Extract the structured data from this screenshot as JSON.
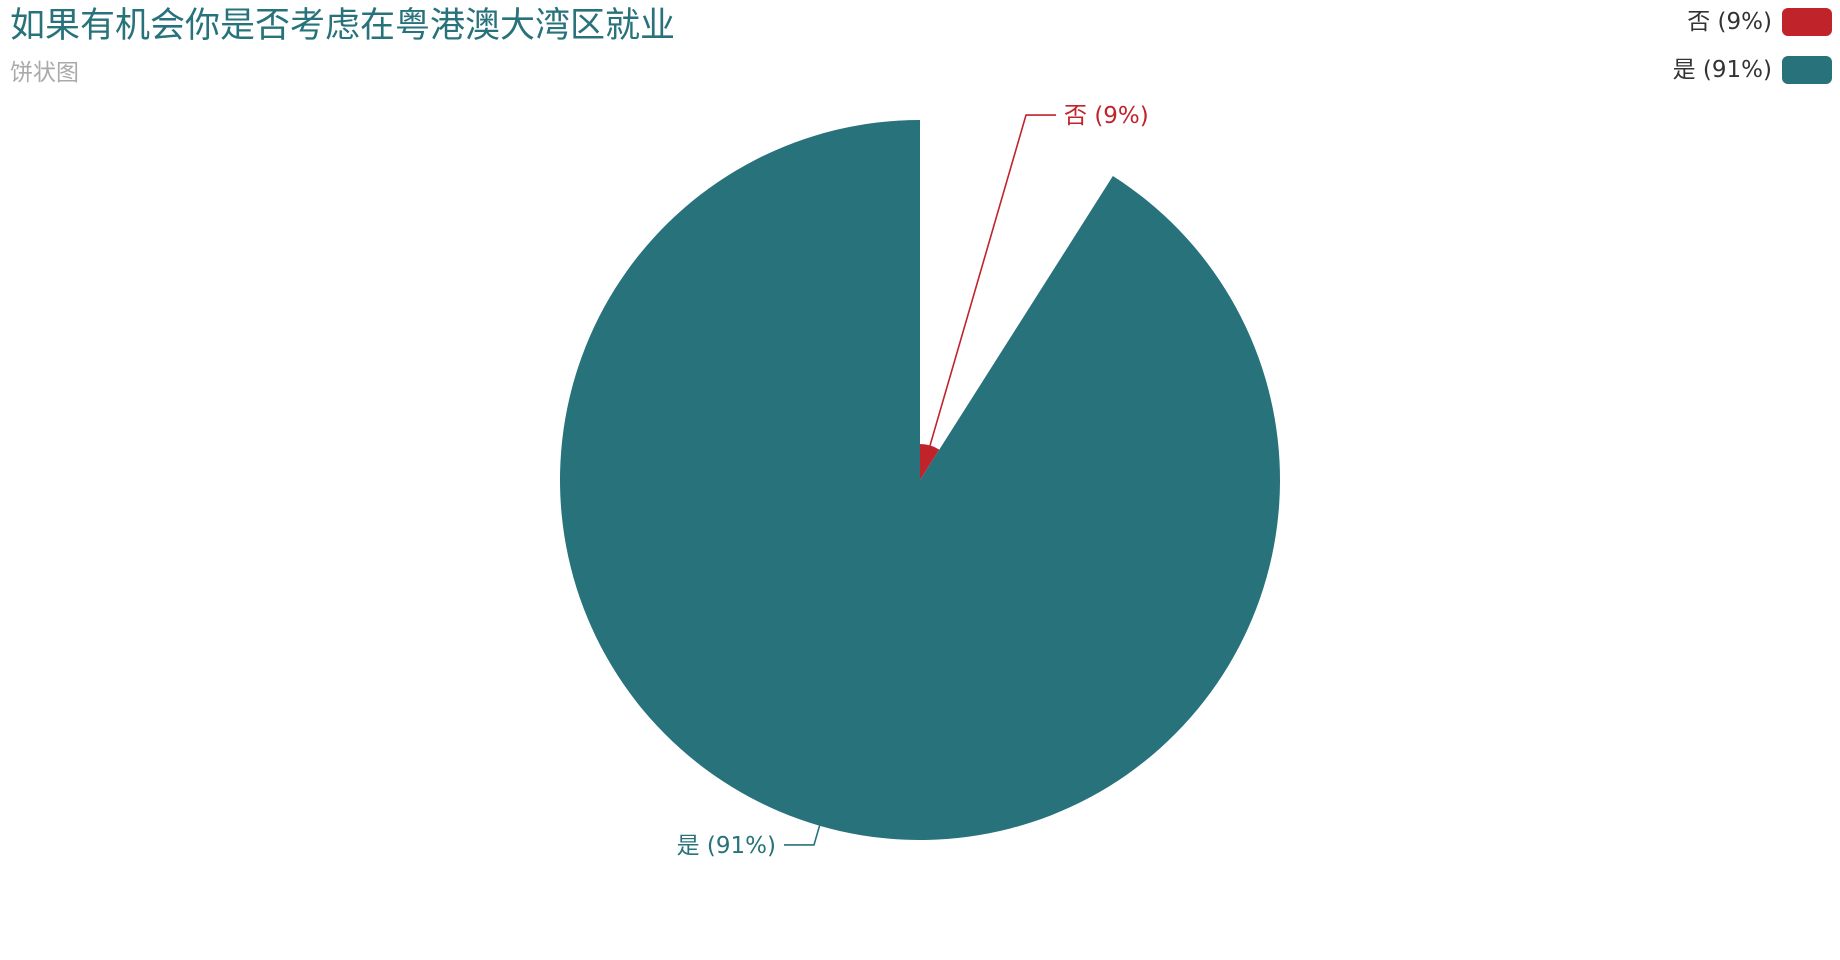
{
  "chart_data": {
    "type": "pie",
    "title": "如果有机会你是否考虑在粤港澳大湾区就业",
    "subtitle": "饼状图",
    "categories": [
      "否",
      "是"
    ],
    "values": [
      9,
      91
    ],
    "slice_labels": [
      "否 (9%)",
      "是 (91%)"
    ],
    "colors": [
      "#c1232b",
      "#27727b"
    ],
    "legend_position": "top-right",
    "legend": [
      "否 (9%)",
      "是 (91%)"
    ],
    "rose_type": "radius"
  }
}
